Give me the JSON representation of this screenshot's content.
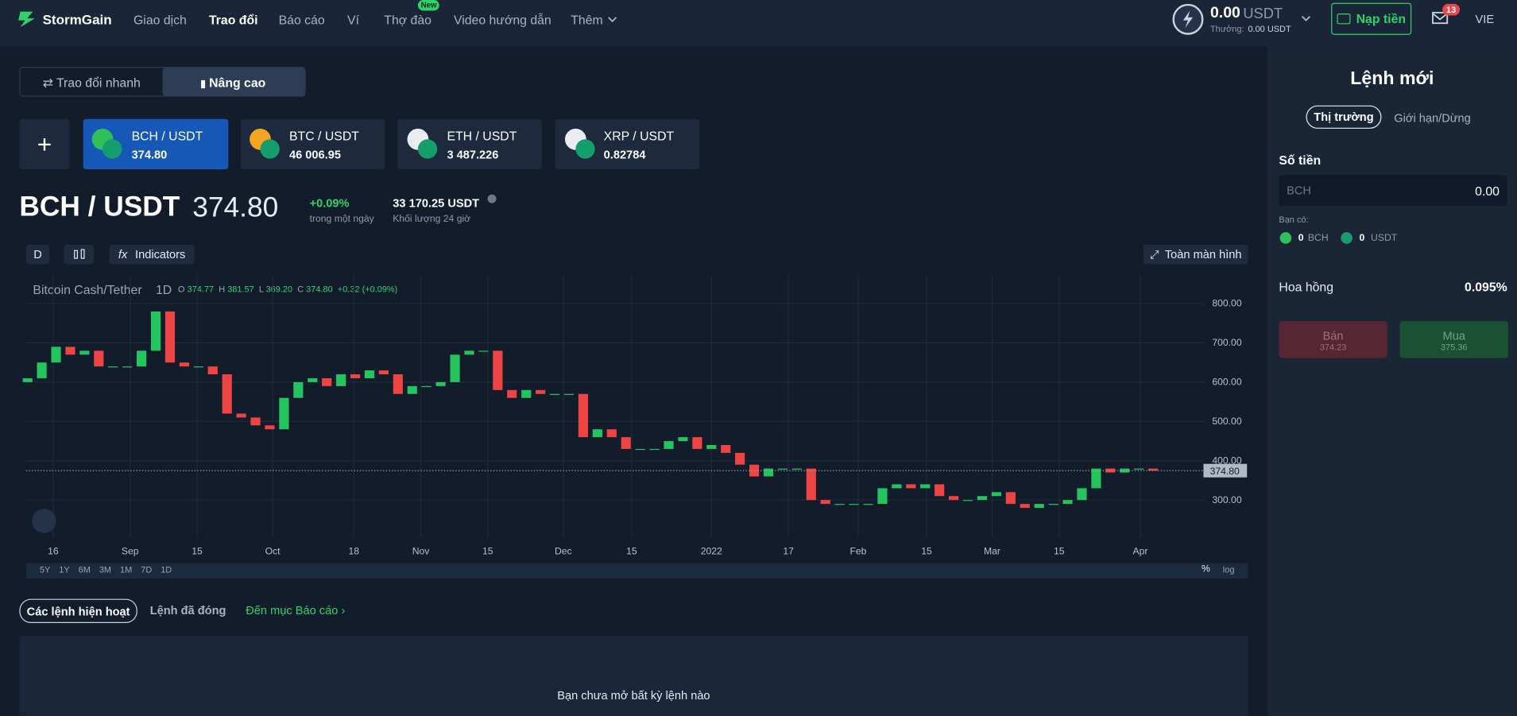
{
  "header": {
    "logo": "StormGain",
    "nav": [
      "Giao dịch",
      "Trao đổi",
      "Báo cáo",
      "Ví",
      "Thợ đào",
      "Video hướng dẫn",
      "Thêm"
    ],
    "new_badge": "New",
    "balance": "0.00",
    "balance_currency": "USDT",
    "bonus_label": "Thưởng:",
    "bonus": "0.00 USDT",
    "deposit": "Nạp tiền",
    "mail_count": "13",
    "language": "VIE"
  },
  "tabs": [
    "Trao đổi nhanh",
    "Nâng cao"
  ],
  "pairs": [
    {
      "name": "BCH / USDT",
      "price": "374.80"
    },
    {
      "name": "BTC / USDT",
      "price": "46 006.95"
    },
    {
      "name": "ETH / USDT",
      "price": "3 487.226"
    },
    {
      "name": "XRP / USDT",
      "price": "0.82784"
    }
  ],
  "ticker": {
    "pair": "BCH / USDT",
    "price": "374.80",
    "change": "+0.09%",
    "change_label": "trong một ngày",
    "volume": "33 170.25 USDT",
    "volume_label": "Khối lượng 24 giờ"
  },
  "toolbar": {
    "interval": "D",
    "indicators": "Indicators",
    "fullscreen": "Toàn màn hình"
  },
  "legend": {
    "symbol": "Bitcoin Cash/Tether",
    "interval": "1D",
    "open_label": "O",
    "open": "374.77",
    "high_label": "H",
    "high": "381.57",
    "low_label": "L",
    "low": "369.20",
    "close_label": "C",
    "close": "374.80",
    "change": "+0.32 (+0.09%)"
  },
  "ranges": [
    "5Y",
    "1Y",
    "6M",
    "3M",
    "1M",
    "7D",
    "1D"
  ],
  "percent": "%",
  "log": "log",
  "chart_data": {
    "type": "candlestick",
    "first_open": 600,
    "values": [
      610,
      650,
      690,
      670,
      680,
      640,
      640,
      640,
      680,
      780,
      650,
      640,
      640,
      620,
      520,
      510,
      490,
      480,
      560,
      600,
      610,
      590,
      620,
      610,
      630,
      620,
      570,
      590,
      590,
      600,
      670,
      680,
      680,
      580,
      560,
      580,
      570,
      570,
      570,
      460,
      480,
      460,
      430,
      430,
      430,
      450,
      460,
      430,
      440,
      420,
      390,
      360,
      380,
      380,
      380,
      300,
      290,
      290,
      290,
      290,
      330,
      340,
      330,
      340,
      310,
      300,
      300,
      310,
      320,
      290,
      280,
      290,
      290,
      300,
      330,
      380,
      370,
      380,
      380,
      374.8
    ],
    "up_color": "#22c55e",
    "down_color": "#ef4444",
    "ylim": [
      206,
      871
    ],
    "yticks": [
      {
        "value": 300,
        "label": "300.00"
      },
      {
        "value": 400,
        "label": "400.00"
      },
      {
        "value": 500,
        "label": "500.00"
      },
      {
        "value": 600,
        "label": "600.00"
      },
      {
        "value": 700,
        "label": "700.00"
      },
      {
        "value": 800,
        "label": "800.00"
      }
    ],
    "current": {
      "value": 374.8,
      "label": "374.80"
    },
    "xlim": [
      -0.1,
      82.6
    ],
    "xticks": [
      {
        "value": 1.8,
        "label": "16"
      },
      {
        "value": 7.2,
        "label": "Sep"
      },
      {
        "value": 11.9,
        "label": "15"
      },
      {
        "value": 17.2,
        "label": "Oct"
      },
      {
        "value": 22.9,
        "label": "18"
      },
      {
        "value": 27.6,
        "label": "Nov"
      },
      {
        "value": 32.3,
        "label": "15"
      },
      {
        "value": 37.6,
        "label": "Dec"
      },
      {
        "value": 42.4,
        "label": "15"
      },
      {
        "value": 48.0,
        "label": "2022"
      },
      {
        "value": 53.4,
        "label": "17"
      },
      {
        "value": 58.3,
        "label": "Feb"
      },
      {
        "value": 63.1,
        "label": "15"
      },
      {
        "value": 67.7,
        "label": "Mar"
      },
      {
        "value": 72.4,
        "label": "15"
      },
      {
        "value": 78.1,
        "label": "Apr"
      }
    ],
    "grid": true
  },
  "orders": {
    "tabs": [
      "Các lệnh hiện hoạt",
      "Lệnh đã đóng"
    ],
    "report_link": "Đến mục Báo cáo ›",
    "empty": "Bạn chưa mở bất kỳ lệnh nào"
  },
  "order_panel": {
    "title": "Lệnh mới",
    "tabs": [
      "Thị trường",
      "Giới hạn/Dừng"
    ],
    "amount_label": "Số tiền",
    "amount_currency": "BCH",
    "amount": "0.00",
    "have_label": "Bạn có:",
    "balances": [
      {
        "amount": "0",
        "currency": "BCH"
      },
      {
        "amount": "0",
        "currency": "USDT"
      }
    ],
    "commission_label": "Hoa hồng",
    "commission": "0.095%",
    "sell": {
      "label": "Bán",
      "price": "374.23"
    },
    "buy": {
      "label": "Mua",
      "price": "375.36"
    }
  }
}
